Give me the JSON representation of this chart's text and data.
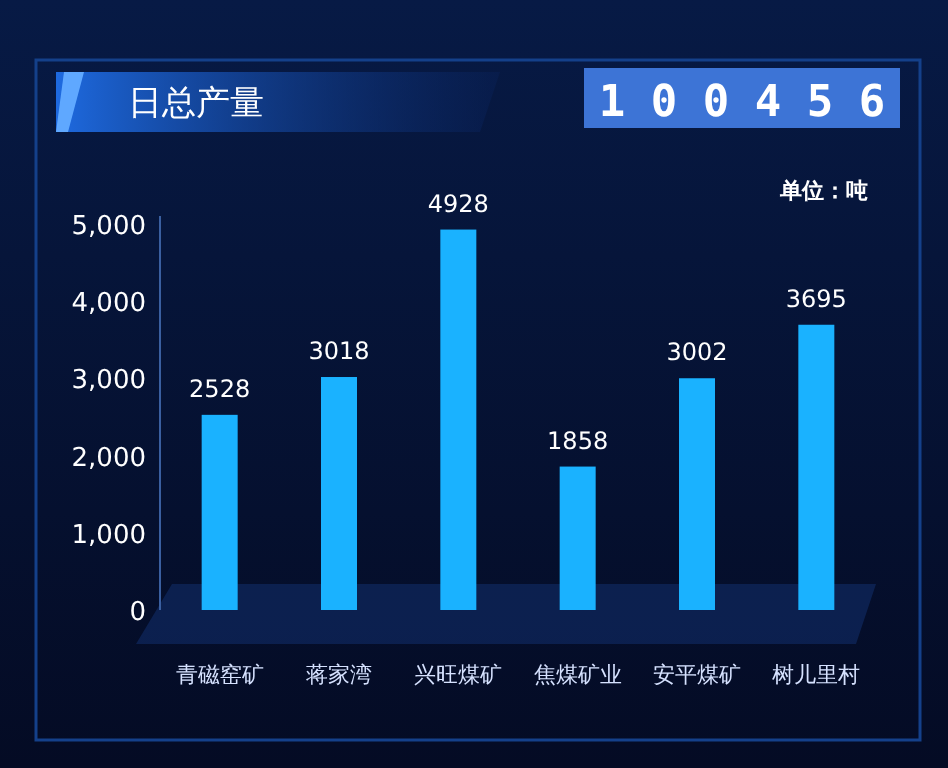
{
  "chart_data": {
    "type": "bar",
    "title": "日总产量",
    "annotations": [
      "100456",
      "单位：吨"
    ],
    "categories": [
      "青磁窑矿",
      "蒋家湾",
      "兴旺煤矿",
      "焦煤矿业",
      "安平煤矿",
      "树儿里村"
    ],
    "values": [
      2528,
      3018,
      4928,
      1858,
      3002,
      3695
    ],
    "color": "#1ab2ff",
    "ylim": [
      0,
      5000
    ],
    "yticks": [
      0,
      {
        "value": 1000,
        "label": "1,000"
      },
      {
        "value": 2000,
        "label": "2,000"
      },
      {
        "value": 3000,
        "label": "3,000"
      },
      {
        "value": 4000,
        "label": "4,000"
      },
      {
        "value": 5000,
        "label": "5,000"
      }
    ],
    "data_labels": true,
    "grid": false
  }
}
